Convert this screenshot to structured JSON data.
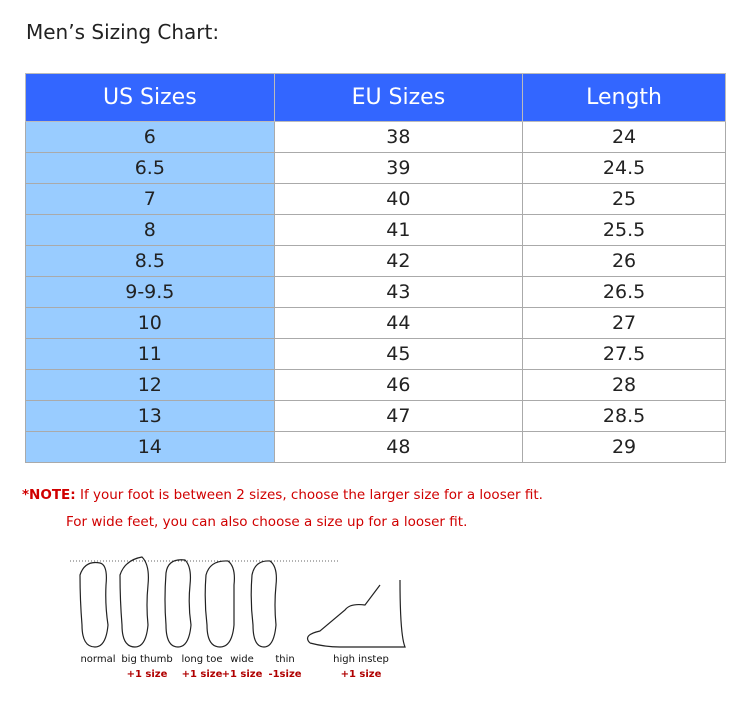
{
  "title": "Men’s Sizing Chart:",
  "colors": {
    "header": "#3366ff",
    "us_column": "#99ccff",
    "note": "#d00000"
  },
  "table": {
    "headers": [
      "US Sizes",
      "EU Sizes",
      "Length"
    ],
    "rows": [
      [
        "6",
        "38",
        "24"
      ],
      [
        "6.5",
        "39",
        "24.5"
      ],
      [
        "7",
        "40",
        "25"
      ],
      [
        "8",
        "41",
        "25.5"
      ],
      [
        "8.5",
        "42",
        "26"
      ],
      [
        "9-9.5",
        "43",
        "26.5"
      ],
      [
        "10",
        "44",
        "27"
      ],
      [
        "11",
        "45",
        "27.5"
      ],
      [
        "12",
        "46",
        "28"
      ],
      [
        "13",
        "47",
        "28.5"
      ],
      [
        "14",
        "48",
        "29"
      ]
    ]
  },
  "note": {
    "prefix": "*NOTE:",
    "line1": " If your foot is between 2 sizes, choose the larger size for a looser fit.",
    "line2": "For wide feet, you can also choose a size up for a looser fit."
  },
  "foot_types": [
    {
      "label": "normal",
      "adj": ""
    },
    {
      "label": "big thumb",
      "adj": "+1 size"
    },
    {
      "label": "long toe",
      "adj": "+1 size"
    },
    {
      "label": "wide",
      "adj": "+1 size"
    },
    {
      "label": "thin",
      "adj": "-1size"
    },
    {
      "label": "high instep",
      "adj": "+1 size"
    }
  ]
}
